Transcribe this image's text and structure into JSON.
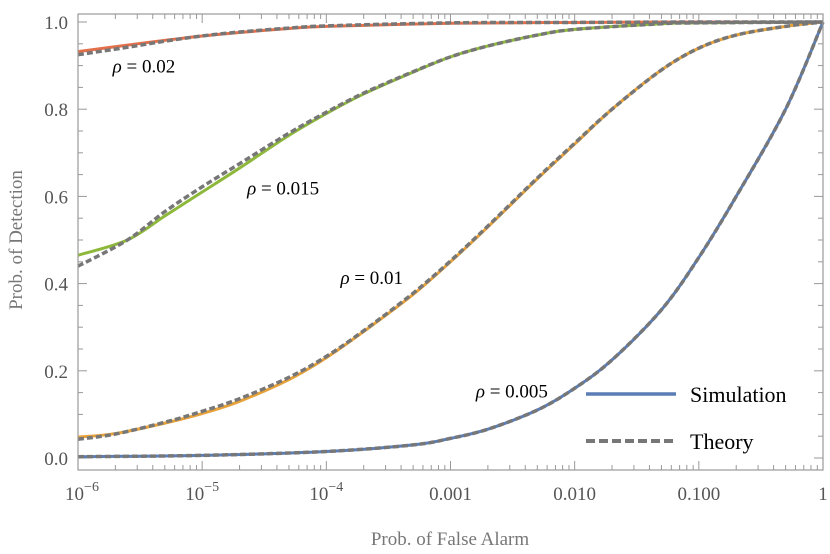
{
  "chart_data": {
    "type": "line",
    "xscale": "log",
    "xlim": [
      1e-06,
      1
    ],
    "ylim": [
      0,
      1
    ],
    "xlabel": "Prob. of False Alarm",
    "ylabel": "Prob. of Detection",
    "x_ticks": [
      {
        "value": 1e-06,
        "base": "10",
        "exp": "−6",
        "text": ""
      },
      {
        "value": 1e-05,
        "base": "10",
        "exp": "−5",
        "text": ""
      },
      {
        "value": 0.0001,
        "base": "10",
        "exp": "−4",
        "text": ""
      },
      {
        "value": 0.001,
        "base": "",
        "exp": "",
        "text": "0.001"
      },
      {
        "value": 0.01,
        "base": "",
        "exp": "",
        "text": "0.010"
      },
      {
        "value": 0.1,
        "base": "",
        "exp": "",
        "text": "0.100"
      },
      {
        "value": 1,
        "base": "",
        "exp": "",
        "text": "1"
      }
    ],
    "y_ticks": [
      {
        "value": 0.0,
        "text": "0.0"
      },
      {
        "value": 0.2,
        "text": "0.2"
      },
      {
        "value": 0.4,
        "text": "0.4"
      },
      {
        "value": 0.6,
        "text": "0.6"
      },
      {
        "value": 0.8,
        "text": "0.8"
      },
      {
        "value": 1.0,
        "text": "1.0"
      }
    ],
    "colors": {
      "rho_0_02": "#e2704a",
      "rho_0_015": "#8eb83b",
      "rho_0_01": "#e8a23a",
      "rho_0_005": "#5b7db6",
      "theory": "#777777",
      "frame": "#999999"
    },
    "series": [
      {
        "id": "rho_0_02",
        "rho": "0.02",
        "x": [
          1e-06,
          2.5e-06,
          5e-06,
          1e-05,
          2e-05,
          5e-05,
          0.0001,
          0.001,
          0.01,
          0.1,
          1
        ],
        "simulation": [
          0.932,
          0.947,
          0.958,
          0.968,
          0.976,
          0.985,
          0.99,
          0.997,
          0.999,
          1.0,
          1.0
        ],
        "theory": [
          0.925,
          0.942,
          0.956,
          0.968,
          0.977,
          0.986,
          0.991,
          0.998,
          0.999,
          1.0,
          1.0
        ]
      },
      {
        "id": "rho_0_015",
        "rho": "0.015",
        "x": [
          1e-06,
          2.5e-06,
          5e-06,
          1e-05,
          2e-05,
          5e-05,
          0.0001,
          0.0002,
          0.0005,
          0.001,
          0.002,
          0.005,
          0.01,
          0.05,
          0.1,
          1
        ],
        "simulation": [
          0.465,
          0.5,
          0.555,
          0.61,
          0.665,
          0.74,
          0.79,
          0.835,
          0.885,
          0.92,
          0.945,
          0.97,
          0.983,
          0.996,
          0.998,
          1.0
        ],
        "theory": [
          0.44,
          0.5,
          0.565,
          0.622,
          0.675,
          0.745,
          0.793,
          0.837,
          0.886,
          0.92,
          0.945,
          0.97,
          0.983,
          0.996,
          0.998,
          1.0
        ]
      },
      {
        "id": "rho_0_01",
        "rho": "0.01",
        "x": [
          1e-06,
          2e-06,
          5e-06,
          1e-05,
          2e-05,
          5e-05,
          0.0001,
          0.0002,
          0.0005,
          0.001,
          0.002,
          0.005,
          0.01,
          0.02,
          0.05,
          0.1,
          0.2,
          0.5,
          1
        ],
        "simulation": [
          0.048,
          0.056,
          0.08,
          0.102,
          0.13,
          0.18,
          0.23,
          0.29,
          0.375,
          0.45,
          0.53,
          0.64,
          0.72,
          0.8,
          0.89,
          0.94,
          0.97,
          0.99,
          1.0
        ],
        "theory": [
          0.043,
          0.055,
          0.082,
          0.107,
          0.136,
          0.185,
          0.233,
          0.292,
          0.378,
          0.452,
          0.532,
          0.642,
          0.722,
          0.8,
          0.89,
          0.94,
          0.97,
          0.99,
          1.0
        ]
      },
      {
        "id": "rho_0_005",
        "rho": "0.005",
        "x": [
          1e-06,
          1e-05,
          0.0001,
          0.0005,
          0.001,
          0.002,
          0.005,
          0.01,
          0.02,
          0.05,
          0.1,
          0.2,
          0.5,
          1
        ],
        "simulation": [
          0.003,
          0.006,
          0.015,
          0.03,
          0.045,
          0.066,
          0.11,
          0.16,
          0.225,
          0.34,
          0.46,
          0.6,
          0.8,
          1.0
        ],
        "theory": [
          0.003,
          0.006,
          0.015,
          0.03,
          0.045,
          0.066,
          0.11,
          0.16,
          0.225,
          0.34,
          0.46,
          0.6,
          0.8,
          1.0
        ]
      }
    ],
    "annotations": [
      {
        "target": "rho_0_02",
        "symbol": "ρ",
        "text": " = 0.02",
        "at": [
          1.9e-06,
          0.9
        ]
      },
      {
        "target": "rho_0_015",
        "symbol": "ρ",
        "text": " = 0.015",
        "at": [
          2.3e-05,
          0.62
        ]
      },
      {
        "target": "rho_0_01",
        "symbol": "ρ",
        "text": " = 0.01",
        "at": [
          0.00013,
          0.415
        ]
      },
      {
        "target": "rho_0_005",
        "symbol": "ρ",
        "text": " = 0.005",
        "at": [
          0.0016,
          0.155
        ]
      }
    ],
    "legend": {
      "position": "bottom-right",
      "items": [
        {
          "label": "Simulation",
          "style": "solid",
          "color": "#5b7db6"
        },
        {
          "label": "Theory",
          "style": "dashed",
          "color": "#777777"
        }
      ]
    }
  }
}
